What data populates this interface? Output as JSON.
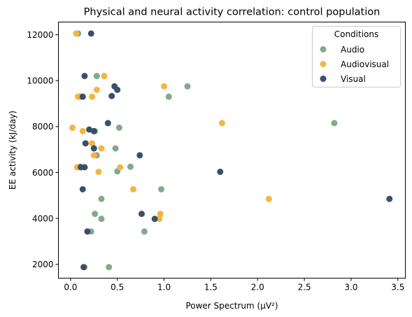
{
  "chart_data": {
    "type": "scatter",
    "title": "Physical and neural activity correlation: control population",
    "xlabel": "Power Spectrum (µV²)",
    "ylabel": "EE activity (kJ/day)",
    "xlim": [
      -0.13,
      3.58
    ],
    "ylim": [
      1400,
      12550
    ],
    "xticks": [
      0.0,
      0.5,
      1.0,
      1.5,
      2.0,
      2.5,
      3.0,
      3.5
    ],
    "xtick_labels": [
      "0.0",
      "0.5",
      "1.0",
      "1.5",
      "2.0",
      "2.5",
      "3.0",
      "3.5"
    ],
    "yticks": [
      2000,
      4000,
      6000,
      8000,
      10000,
      12000
    ],
    "ytick_labels": [
      "2000",
      "4000",
      "6000",
      "8000",
      "10000",
      "12000"
    ],
    "grid": false,
    "legend": {
      "title": "Conditions",
      "position": "top-right"
    },
    "series": [
      {
        "name": "Audio",
        "color": "#84a98c",
        "points": [
          [
            0.08,
            12050
          ],
          [
            0.28,
            10200
          ],
          [
            1.25,
            9750
          ],
          [
            1.05,
            9300
          ],
          [
            0.1,
            9300
          ],
          [
            0.52,
            7950
          ],
          [
            0.26,
            7800
          ],
          [
            2.82,
            8150
          ],
          [
            0.48,
            7050
          ],
          [
            0.28,
            6750
          ],
          [
            0.64,
            6250
          ],
          [
            0.5,
            6050
          ],
          [
            0.97,
            5270
          ],
          [
            0.33,
            4850
          ],
          [
            0.26,
            4200
          ],
          [
            0.33,
            3980
          ],
          [
            0.79,
            3430
          ],
          [
            0.22,
            3430
          ],
          [
            0.41,
            1880
          ],
          [
            0.1,
            6250
          ]
        ]
      },
      {
        "name": "Audiovisual",
        "color": "#f4b540",
        "points": [
          [
            0.06,
            12050
          ],
          [
            0.36,
            10200
          ],
          [
            1.0,
            9750
          ],
          [
            0.28,
            9600
          ],
          [
            0.23,
            9300
          ],
          [
            0.08,
            9300
          ],
          [
            0.02,
            7950
          ],
          [
            0.13,
            7800
          ],
          [
            1.62,
            8150
          ],
          [
            0.23,
            7270
          ],
          [
            0.33,
            7050
          ],
          [
            0.25,
            6750
          ],
          [
            0.53,
            6230
          ],
          [
            0.07,
            6230
          ],
          [
            0.3,
            6030
          ],
          [
            0.67,
            5270
          ],
          [
            2.12,
            4850
          ],
          [
            0.96,
            4200
          ],
          [
            0.95,
            3980
          ],
          [
            0.15,
            1880
          ]
        ]
      },
      {
        "name": "Visual",
        "color": "#3a5069",
        "points": [
          [
            0.22,
            12050
          ],
          [
            0.15,
            10200
          ],
          [
            0.47,
            9750
          ],
          [
            0.5,
            9600
          ],
          [
            0.13,
            9300
          ],
          [
            0.44,
            9330
          ],
          [
            0.4,
            8150
          ],
          [
            0.2,
            7870
          ],
          [
            0.25,
            7800
          ],
          [
            0.16,
            7270
          ],
          [
            0.25,
            7050
          ],
          [
            0.74,
            6750
          ],
          [
            0.11,
            6230
          ],
          [
            0.15,
            6230
          ],
          [
            1.6,
            6030
          ],
          [
            0.13,
            5270
          ],
          [
            3.41,
            4850
          ],
          [
            0.76,
            4200
          ],
          [
            0.9,
            3980
          ],
          [
            0.18,
            3430
          ],
          [
            0.14,
            1880
          ]
        ]
      }
    ]
  }
}
